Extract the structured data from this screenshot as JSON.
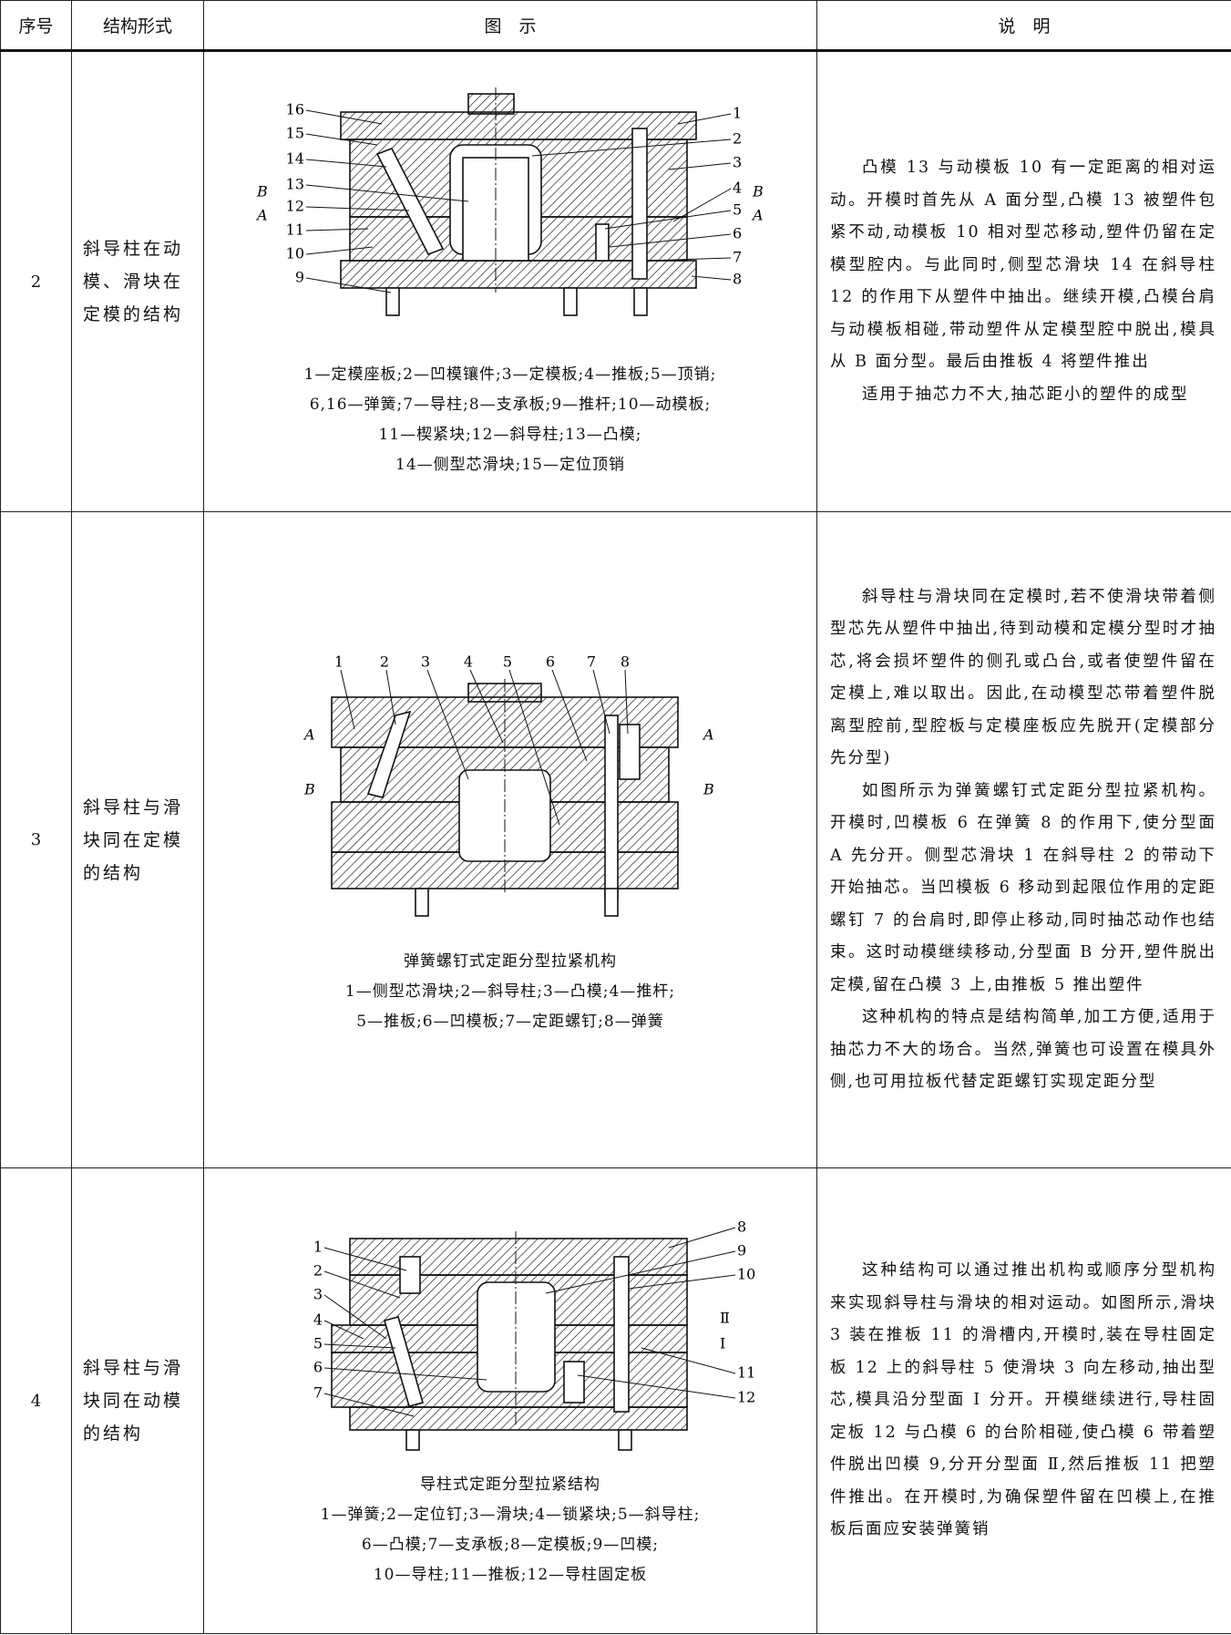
{
  "table": {
    "header": [
      "序号",
      "结构形式",
      "图　示",
      "说　明"
    ],
    "rows": [
      {
        "no": "2",
        "structure": "斜导柱在动模、滑块在定模的结构",
        "figure": {
          "labels_left": [
            "16",
            "15",
            "14",
            "13",
            "12",
            "11",
            "10",
            "9"
          ],
          "side_left": [
            "B",
            "A"
          ],
          "labels_right": [
            "1",
            "2",
            "3",
            "4",
            "5",
            "6",
            "7",
            "8"
          ],
          "side_right": [
            "B",
            "A"
          ],
          "legend": [
            "1—定模座板;2—凹模镶件;3—定模板;4—推板;5—顶销;",
            "6,16—弹簧;7—导柱;8—支承板;9—推杆;10—动模板;",
            "11—楔紧块;12—斜导柱;13—凸模;",
            "14—侧型芯滑块;15—定位顶销"
          ]
        },
        "description": [
          "凸模 13 与动模板 10 有一定距离的相对运动。开模时首先从 A 面分型,凸模 13 被塑件包紧不动,动模板 10 相对型芯移动,塑件仍留在定模型腔内。与此同时,侧型芯滑块 14 在斜导柱 12 的作用下从塑件中抽出。继续开模,凸模台肩与动模板相碰,带动塑件从定模型腔中脱出,模具从 B 面分型。最后由推板 4 将塑件推出",
          "适用于抽芯力不大,抽芯距小的塑件的成型"
        ]
      },
      {
        "no": "3",
        "structure": "斜导柱与滑块同在定模的结构",
        "figure": {
          "labels_top": [
            "1",
            "2",
            "3",
            "4",
            "5",
            "6",
            "7",
            "8"
          ],
          "side_left": [
            "A",
            "B"
          ],
          "side_right": [
            "A",
            "B"
          ],
          "caption": "弹簧螺钉式定距分型拉紧机构",
          "legend": [
            "1—侧型芯滑块;2—斜导柱;3—凸模;4—推杆;",
            "5—推板;6—凹模板;7—定距螺钉;8—弹簧"
          ]
        },
        "description": [
          "斜导柱与滑块同在定模时,若不使滑块带着侧型芯先从塑件中抽出,待到动模和定模分型时才抽芯,将会损坏塑件的侧孔或凸台,或者使塑件留在定模上,难以取出。因此,在动模型芯带着塑件脱离型腔前,型腔板与定模座板应先脱开(定模部分先分型)",
          "如图所示为弹簧螺钉式定距分型拉紧机构。开模时,凹模板 6 在弹簧 8 的作用下,使分型面 A 先分开。侧型芯滑块 1 在斜导柱 2 的带动下开始抽芯。当凹模板 6 移动到起限位作用的定距螺钉 7 的台肩时,即停止移动,同时抽芯动作也结束。这时动模继续移动,分型面 B 分开,塑件脱出定模,留在凸模 3 上,由推板 5 推出塑件",
          "这种机构的特点是结构简单,加工方便,适用于抽芯力不大的场合。当然,弹簧也可设置在模具外侧,也可用拉板代替定距螺钉实现定距分型"
        ]
      },
      {
        "no": "4",
        "structure": "斜导柱与滑块同在动模的结构",
        "figure": {
          "labels_left": [
            "1",
            "2",
            "3",
            "4",
            "5",
            "6",
            "7"
          ],
          "labels_right": [
            "8",
            "9",
            "10",
            "11",
            "12"
          ],
          "side_right": [
            "Ⅱ",
            "Ⅰ"
          ],
          "caption": "导柱式定距分型拉紧结构",
          "legend": [
            "1—弹簧;2—定位钉;3—滑块;4—锁紧块;5—斜导柱;",
            "6—凸模;7—支承板;8—定模板;9—凹模;",
            "10—导柱;11—推板;12—导柱固定板"
          ]
        },
        "description": [
          "这种结构可以通过推出机构或顺序分型机构来实现斜导柱与滑块的相对运动。如图所示,滑块 3 装在推板 11 的滑槽内,开模时,装在导柱固定板 12 上的斜导柱 5 使滑块 3 向左移动,抽出型芯,模具沿分型面 Ⅰ 分开。开模继续进行,导柱固定板 12 与凸模 6 的台阶相碰,使凸模 6 带着塑件脱出凹模 9,分开分型面 Ⅱ,然后推板 11 把塑件推出。在开模时,为确保塑件留在凹模上,在推板后面应安装弹簧销"
        ]
      }
    ]
  }
}
